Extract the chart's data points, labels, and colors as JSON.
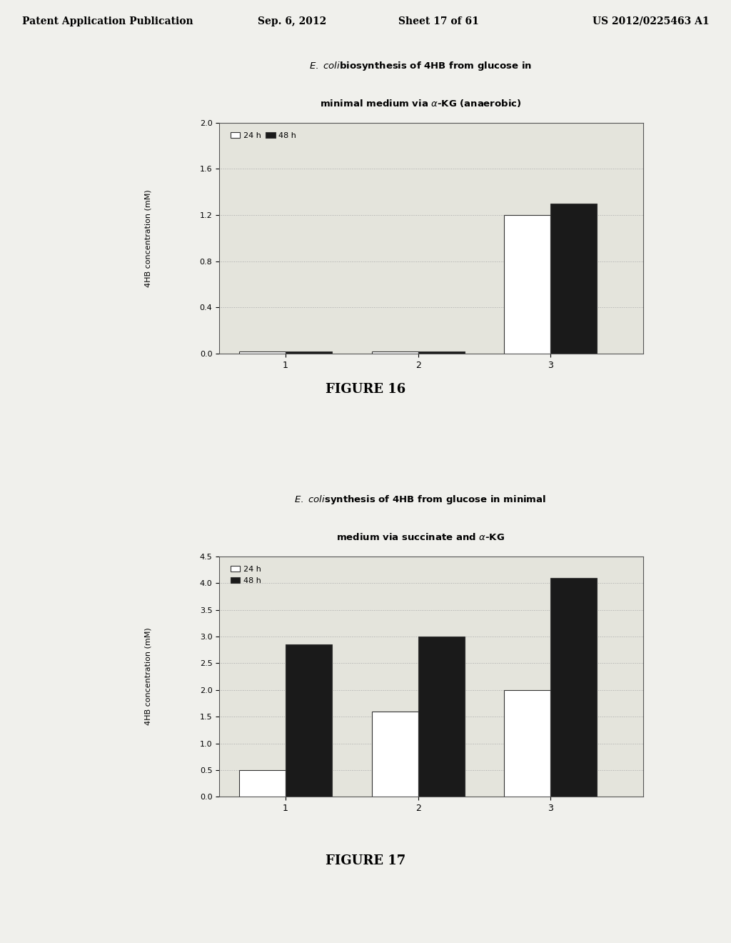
{
  "fig16": {
    "title_line1": "E. coli​biosynthesis of 4HB from glucose in",
    "title_line2": "minimal medium via α-KG (anaerobic)",
    "ylabel": "4HB concentration (mM)",
    "xlabel_ticks": [
      "1",
      "2",
      "3"
    ],
    "ylim": [
      0.0,
      2.0
    ],
    "yticks": [
      0.0,
      0.4,
      0.8,
      1.2,
      1.6,
      2.0
    ],
    "legend_labels": [
      "24 h",
      "48 h"
    ],
    "bar_width": 0.35,
    "bar_positions": [
      1,
      2,
      3
    ],
    "values_24h": [
      0.02,
      0.02,
      1.2
    ],
    "values_48h": [
      0.02,
      0.02,
      1.3
    ],
    "color_24h": "#ffffff",
    "color_48h": "#1a1a1a",
    "edge_color": "#333333",
    "grid_color": "#aaaaaa",
    "figure_label": "FIGURE 16"
  },
  "fig17": {
    "title_line1": "E. coli​synthesis of 4HB from glucose in minimal",
    "title_line2": "medium via succinate and α-KG",
    "ylabel": "4HB concentration (mM)",
    "xlabel_ticks": [
      "1",
      "2",
      "3"
    ],
    "ylim": [
      0.0,
      4.5
    ],
    "yticks": [
      0.0,
      0.5,
      1.0,
      1.5,
      2.0,
      2.5,
      3.0,
      3.5,
      4.0,
      4.5
    ],
    "legend_labels": [
      "24 h",
      "48 h"
    ],
    "bar_width": 0.35,
    "bar_positions": [
      1,
      2,
      3
    ],
    "values_24h": [
      0.5,
      1.6,
      2.0
    ],
    "values_48h": [
      2.85,
      3.0,
      4.1
    ],
    "color_24h": "#ffffff",
    "color_48h": "#1a1a1a",
    "edge_color": "#333333",
    "grid_color": "#aaaaaa",
    "figure_label": "FIGURE 17"
  },
  "page_header": {
    "left": "Patent Application Publication",
    "center": "Sep. 6, 2012",
    "sheet": "Sheet 17 of 61",
    "right": "US 2012/0225463 A1"
  },
  "background_color": "#f0f0ec",
  "chart_bg": "#e4e4dc"
}
